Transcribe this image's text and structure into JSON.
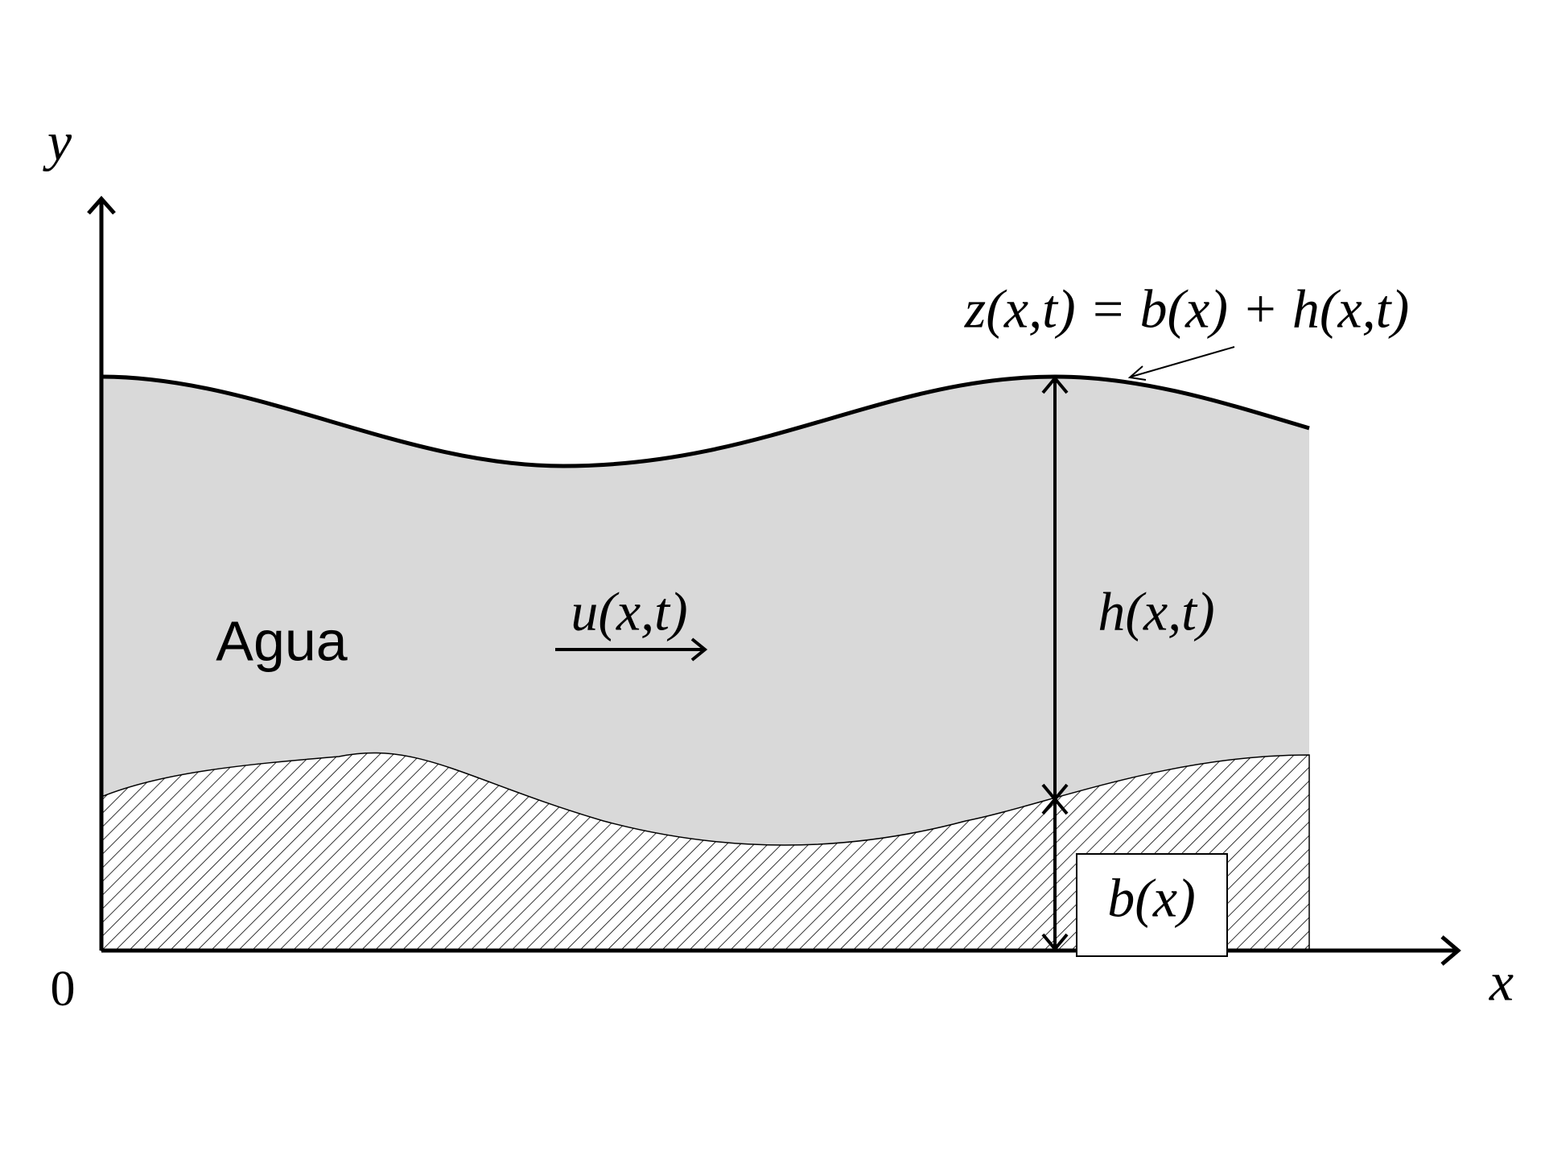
{
  "axes": {
    "y_label": "y",
    "x_label": "x",
    "origin_label": "0"
  },
  "labels": {
    "surface": "z(x,t) = b(x) + h(x,t)",
    "water": "Agua",
    "velocity": "u(x,t)",
    "depth": "h(x,t)",
    "bed": "b(x)"
  }
}
